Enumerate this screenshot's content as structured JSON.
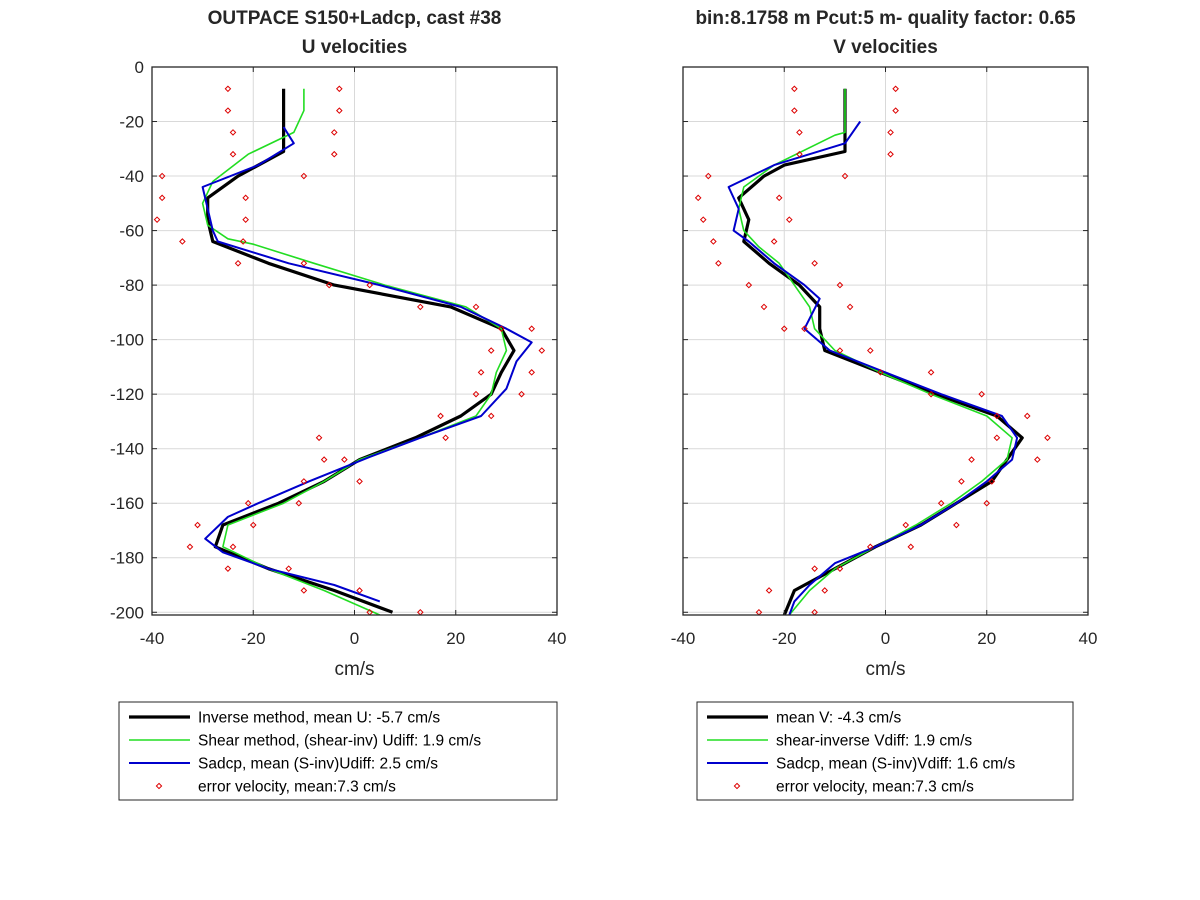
{
  "chart_data": [
    {
      "type": "line",
      "title": "OUTPACE S150+Ladcp, cast #38",
      "subtitle": "U velocities",
      "xlabel": "cm/s",
      "ylabel": "",
      "xlim": [
        -40,
        40
      ],
      "ylim": [
        -201,
        0
      ],
      "xticks": [
        -40,
        -20,
        0,
        20,
        40
      ],
      "yticks": [
        0,
        -20,
        -40,
        -60,
        -80,
        -100,
        -120,
        -140,
        -160,
        -180,
        -200
      ],
      "grid": true,
      "legend_position": "below",
      "series": [
        {
          "name": "Inverse method, mean U:  -5.7 cm/s",
          "color": "#000000",
          "width": 3.2,
          "style": "line",
          "points": [
            [
              -14,
              -8
            ],
            [
              -14,
              -16
            ],
            [
              -14,
              -24
            ],
            [
              -14,
              -31
            ],
            [
              -23,
              -40
            ],
            [
              -29,
              -48
            ],
            [
              -29,
              -56
            ],
            [
              -28,
              -64
            ],
            [
              -17,
              -72
            ],
            [
              -4,
              -80
            ],
            [
              19,
              -88
            ],
            [
              29,
              -96
            ],
            [
              31.5,
              -104
            ],
            [
              29,
              -112
            ],
            [
              27,
              -120
            ],
            [
              21,
              -128
            ],
            [
              12,
              -136
            ],
            [
              1,
              -144
            ],
            [
              -6,
              -152
            ],
            [
              -15,
              -160
            ],
            [
              -26,
              -168
            ],
            [
              -27.5,
              -176
            ],
            [
              -17,
              -184
            ],
            [
              -4,
              -192
            ],
            [
              7.5,
              -200
            ]
          ]
        },
        {
          "name": "Shear method, (shear-inv)  Udiff:  1.9 cm/s",
          "color": "#22dd22",
          "width": 1.6,
          "style": "line",
          "points": [
            [
              -10,
              -8
            ],
            [
              -10,
              -16
            ],
            [
              -12,
              -24
            ],
            [
              -21,
              -32
            ],
            [
              -28,
              -42
            ],
            [
              -30,
              -50
            ],
            [
              -29,
              -58
            ],
            [
              -25,
              -63
            ],
            [
              -20,
              -65
            ],
            [
              -8,
              -72
            ],
            [
              6,
              -80
            ],
            [
              22,
              -88
            ],
            [
              29,
              -96
            ],
            [
              30,
              -104
            ],
            [
              28,
              -112
            ],
            [
              27,
              -120
            ],
            [
              24,
              -128
            ],
            [
              13,
              -136
            ],
            [
              1,
              -144
            ],
            [
              -6,
              -152
            ],
            [
              -14,
              -160
            ],
            [
              -25,
              -168
            ],
            [
              -26,
              -176
            ],
            [
              -17,
              -184
            ],
            [
              -6,
              -192
            ],
            [
              5,
              -201
            ]
          ]
        },
        {
          "name": "Sadcp, mean (S-inv)Udiff: 2.5 cm/s",
          "color": "#0000cc",
          "width": 2.0,
          "style": "line",
          "points": [
            [
              -14,
              -22
            ],
            [
              -12,
              -28
            ],
            [
              -19,
              -36
            ],
            [
              -30,
              -44
            ],
            [
              -29,
              -52
            ],
            [
              -28,
              -60
            ],
            [
              -27,
              -64
            ],
            [
              -20,
              -68
            ],
            [
              -13,
              -72
            ],
            [
              5,
              -80
            ],
            [
              21,
              -88
            ],
            [
              30,
              -96
            ],
            [
              35,
              -101
            ],
            [
              32,
              -108
            ],
            [
              30,
              -118
            ],
            [
              25,
              -128
            ],
            [
              13,
              -136
            ],
            [
              3,
              -143
            ],
            [
              -9,
              -152
            ],
            [
              -19,
              -160
            ],
            [
              -25,
              -165
            ],
            [
              -29.5,
              -173
            ],
            [
              -26,
              -178
            ],
            [
              -17,
              -184
            ],
            [
              -4,
              -190
            ],
            [
              5,
              -196
            ]
          ]
        },
        {
          "name": "error velocity, mean:7.3 cm/s",
          "color": "#dd0000",
          "width": 0,
          "style": "markers",
          "points": [
            [
              -25,
              -8
            ],
            [
              -3,
              -8
            ],
            [
              -25,
              -16
            ],
            [
              -3,
              -16
            ],
            [
              -24,
              -24
            ],
            [
              -4,
              -24
            ],
            [
              -24,
              -32
            ],
            [
              -4,
              -32
            ],
            [
              -38,
              -40
            ],
            [
              -10,
              -40
            ],
            [
              -38,
              -48
            ],
            [
              -21.5,
              -48
            ],
            [
              -39,
              -56
            ],
            [
              -21.5,
              -56
            ],
            [
              -34,
              -64
            ],
            [
              -22,
              -64
            ],
            [
              -23,
              -72
            ],
            [
              -10,
              -72
            ],
            [
              -5,
              -80
            ],
            [
              3,
              -80
            ],
            [
              13,
              -88
            ],
            [
              24,
              -88
            ],
            [
              29,
              -96
            ],
            [
              35,
              -96
            ],
            [
              27,
              -104
            ],
            [
              37,
              -104
            ],
            [
              25,
              -112
            ],
            [
              35,
              -112
            ],
            [
              24,
              -120
            ],
            [
              33,
              -120
            ],
            [
              17,
              -128
            ],
            [
              27,
              -128
            ],
            [
              18,
              -136
            ],
            [
              -7,
              -136
            ],
            [
              -6,
              -144
            ],
            [
              -2,
              -144
            ],
            [
              -10,
              -152
            ],
            [
              1,
              -152
            ],
            [
              -11,
              -160
            ],
            [
              -21,
              -160
            ],
            [
              -31,
              -168
            ],
            [
              -20,
              -168
            ],
            [
              -32.5,
              -176
            ],
            [
              -24,
              -176
            ],
            [
              -25,
              -184
            ],
            [
              -13,
              -184
            ],
            [
              -10,
              -192
            ],
            [
              1,
              -192
            ],
            [
              3,
              -200
            ],
            [
              13,
              -200
            ]
          ]
        }
      ]
    },
    {
      "type": "line",
      "title": "bin:8.1758 m  Pcut:5 m- quality factor:  0.65",
      "subtitle": "V velocities",
      "xlabel": "cm/s",
      "ylabel": "",
      "xlim": [
        -40,
        40
      ],
      "ylim": [
        -201,
        0
      ],
      "xticks": [
        -40,
        -20,
        0,
        20,
        40
      ],
      "yticks": [
        0,
        -20,
        -40,
        -60,
        -80,
        -100,
        -120,
        -140,
        -160,
        -180,
        -200
      ],
      "show_ytick_labels": false,
      "grid": true,
      "legend_position": "below",
      "series": [
        {
          "name": "mean V:  -4.3 cm/s",
          "color": "#000000",
          "width": 3.2,
          "style": "line",
          "points": [
            [
              -8,
              -8
            ],
            [
              -8,
              -16
            ],
            [
              -8,
              -24
            ],
            [
              -8,
              -31
            ],
            [
              -20,
              -36
            ],
            [
              -24,
              -40
            ],
            [
              -29,
              -48
            ],
            [
              -27,
              -56
            ],
            [
              -28,
              -64
            ],
            [
              -23,
              -72
            ],
            [
              -17,
              -80
            ],
            [
              -13,
              -88
            ],
            [
              -13,
              -96
            ],
            [
              -12,
              -104
            ],
            [
              -1,
              -112
            ],
            [
              10,
              -120
            ],
            [
              22,
              -128
            ],
            [
              27,
              -136
            ],
            [
              24,
              -144
            ],
            [
              21,
              -152
            ],
            [
              14,
              -160
            ],
            [
              7,
              -168
            ],
            [
              -2,
              -176
            ],
            [
              -10,
              -184
            ],
            [
              -18,
              -192
            ],
            [
              -20,
              -201
            ]
          ]
        },
        {
          "name": "shear-inverse Vdiff:  1.9 cm/s",
          "color": "#22dd22",
          "width": 1.6,
          "style": "line",
          "points": [
            [
              -8,
              -8
            ],
            [
              -8,
              -16
            ],
            [
              -8,
              -24
            ],
            [
              -10,
              -25
            ],
            [
              -22,
              -36
            ],
            [
              -28,
              -44
            ],
            [
              -29,
              -52
            ],
            [
              -28,
              -60
            ],
            [
              -25,
              -66
            ],
            [
              -21,
              -72
            ],
            [
              -18,
              -80
            ],
            [
              -15,
              -88
            ],
            [
              -14,
              -96
            ],
            [
              -10,
              -104
            ],
            [
              -1,
              -112
            ],
            [
              9,
              -120
            ],
            [
              20,
              -128
            ],
            [
              25,
              -136
            ],
            [
              24,
              -144
            ],
            [
              19,
              -152
            ],
            [
              13,
              -160
            ],
            [
              6,
              -168
            ],
            [
              -2,
              -176
            ],
            [
              -10,
              -184
            ],
            [
              -15,
              -192
            ],
            [
              -19,
              -201
            ]
          ]
        },
        {
          "name": "Sadcp, mean (S-inv)Vdiff: 1.6 cm/s",
          "color": "#0000cc",
          "width": 2.0,
          "style": "line",
          "points": [
            [
              -5,
              -20
            ],
            [
              -8,
              -28
            ],
            [
              -22,
              -36
            ],
            [
              -31,
              -44
            ],
            [
              -29,
              -52
            ],
            [
              -30,
              -60
            ],
            [
              -27,
              -64
            ],
            [
              -22,
              -72
            ],
            [
              -16,
              -80
            ],
            [
              -13,
              -85
            ],
            [
              -16,
              -96
            ],
            [
              -11,
              -104
            ],
            [
              0,
              -112
            ],
            [
              11,
              -120
            ],
            [
              23,
              -128
            ],
            [
              26,
              -136
            ],
            [
              25,
              -144
            ],
            [
              20,
              -152
            ],
            [
              14,
              -160
            ],
            [
              7,
              -168
            ],
            [
              -2,
              -176
            ],
            [
              -10,
              -182
            ],
            [
              -15,
              -190
            ],
            [
              -18,
              -196
            ],
            [
              -19,
              -201
            ]
          ]
        },
        {
          "name": "error velocity, mean:7.3 cm/s",
          "color": "#dd0000",
          "width": 0,
          "style": "markers",
          "points": [
            [
              -18,
              -8
            ],
            [
              2,
              -8
            ],
            [
              -18,
              -16
            ],
            [
              2,
              -16
            ],
            [
              -17,
              -24
            ],
            [
              1,
              -24
            ],
            [
              -17,
              -32
            ],
            [
              1,
              -32
            ],
            [
              -35,
              -40
            ],
            [
              -8,
              -40
            ],
            [
              -37,
              -48
            ],
            [
              -21,
              -48
            ],
            [
              -36,
              -56
            ],
            [
              -19,
              -56
            ],
            [
              -34,
              -64
            ],
            [
              -22,
              -64
            ],
            [
              -33,
              -72
            ],
            [
              -14,
              -72
            ],
            [
              -27,
              -80
            ],
            [
              -9,
              -80
            ],
            [
              -24,
              -88
            ],
            [
              -7,
              -88
            ],
            [
              -16,
              -96
            ],
            [
              -20,
              -96
            ],
            [
              -9,
              -104
            ],
            [
              -3,
              -104
            ],
            [
              -1,
              -112
            ],
            [
              9,
              -112
            ],
            [
              19,
              -120
            ],
            [
              9,
              -120
            ],
            [
              28,
              -128
            ],
            [
              22,
              -128
            ],
            [
              32,
              -136
            ],
            [
              22,
              -136
            ],
            [
              30,
              -144
            ],
            [
              17,
              -144
            ],
            [
              21,
              -152
            ],
            [
              15,
              -152
            ],
            [
              11,
              -160
            ],
            [
              20,
              -160
            ],
            [
              4,
              -168
            ],
            [
              14,
              -168
            ],
            [
              -3,
              -176
            ],
            [
              5,
              -176
            ],
            [
              -9,
              -184
            ],
            [
              -14,
              -184
            ],
            [
              -23,
              -192
            ],
            [
              -12,
              -192
            ],
            [
              -25,
              -200
            ],
            [
              -14,
              -200
            ]
          ]
        }
      ]
    }
  ]
}
